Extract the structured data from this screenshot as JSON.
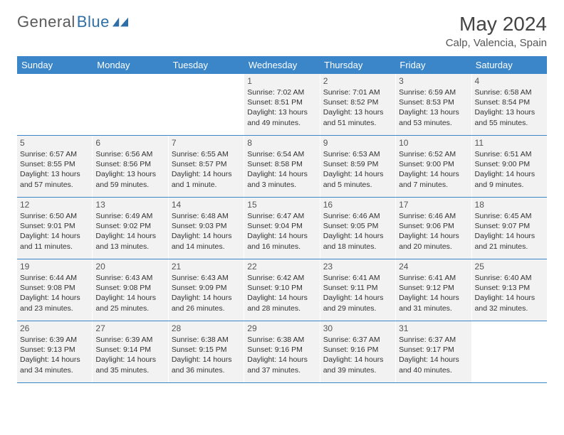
{
  "brand": {
    "part1": "General",
    "part2": "Blue"
  },
  "title": "May 2024",
  "location": "Calp, Valencia, Spain",
  "weekdays": [
    "Sunday",
    "Monday",
    "Tuesday",
    "Wednesday",
    "Thursday",
    "Friday",
    "Saturday"
  ],
  "colors": {
    "header_bar": "#3a86c8",
    "cell_bg": "#f2f2f2",
    "page_bg": "#ffffff",
    "text": "#333333",
    "brand_gray": "#5a5a5a",
    "brand_blue": "#2f6fa8"
  },
  "weeks": [
    [
      {
        "day": "",
        "sunrise": "",
        "sunset": "",
        "daylight": "",
        "empty": true
      },
      {
        "day": "",
        "sunrise": "",
        "sunset": "",
        "daylight": "",
        "empty": true
      },
      {
        "day": "",
        "sunrise": "",
        "sunset": "",
        "daylight": "",
        "empty": true
      },
      {
        "day": "1",
        "sunrise": "Sunrise: 7:02 AM",
        "sunset": "Sunset: 8:51 PM",
        "daylight": "Daylight: 13 hours and 49 minutes."
      },
      {
        "day": "2",
        "sunrise": "Sunrise: 7:01 AM",
        "sunset": "Sunset: 8:52 PM",
        "daylight": "Daylight: 13 hours and 51 minutes."
      },
      {
        "day": "3",
        "sunrise": "Sunrise: 6:59 AM",
        "sunset": "Sunset: 8:53 PM",
        "daylight": "Daylight: 13 hours and 53 minutes."
      },
      {
        "day": "4",
        "sunrise": "Sunrise: 6:58 AM",
        "sunset": "Sunset: 8:54 PM",
        "daylight": "Daylight: 13 hours and 55 minutes."
      }
    ],
    [
      {
        "day": "5",
        "sunrise": "Sunrise: 6:57 AM",
        "sunset": "Sunset: 8:55 PM",
        "daylight": "Daylight: 13 hours and 57 minutes."
      },
      {
        "day": "6",
        "sunrise": "Sunrise: 6:56 AM",
        "sunset": "Sunset: 8:56 PM",
        "daylight": "Daylight: 13 hours and 59 minutes."
      },
      {
        "day": "7",
        "sunrise": "Sunrise: 6:55 AM",
        "sunset": "Sunset: 8:57 PM",
        "daylight": "Daylight: 14 hours and 1 minute."
      },
      {
        "day": "8",
        "sunrise": "Sunrise: 6:54 AM",
        "sunset": "Sunset: 8:58 PM",
        "daylight": "Daylight: 14 hours and 3 minutes."
      },
      {
        "day": "9",
        "sunrise": "Sunrise: 6:53 AM",
        "sunset": "Sunset: 8:59 PM",
        "daylight": "Daylight: 14 hours and 5 minutes."
      },
      {
        "day": "10",
        "sunrise": "Sunrise: 6:52 AM",
        "sunset": "Sunset: 9:00 PM",
        "daylight": "Daylight: 14 hours and 7 minutes."
      },
      {
        "day": "11",
        "sunrise": "Sunrise: 6:51 AM",
        "sunset": "Sunset: 9:00 PM",
        "daylight": "Daylight: 14 hours and 9 minutes."
      }
    ],
    [
      {
        "day": "12",
        "sunrise": "Sunrise: 6:50 AM",
        "sunset": "Sunset: 9:01 PM",
        "daylight": "Daylight: 14 hours and 11 minutes."
      },
      {
        "day": "13",
        "sunrise": "Sunrise: 6:49 AM",
        "sunset": "Sunset: 9:02 PM",
        "daylight": "Daylight: 14 hours and 13 minutes."
      },
      {
        "day": "14",
        "sunrise": "Sunrise: 6:48 AM",
        "sunset": "Sunset: 9:03 PM",
        "daylight": "Daylight: 14 hours and 14 minutes."
      },
      {
        "day": "15",
        "sunrise": "Sunrise: 6:47 AM",
        "sunset": "Sunset: 9:04 PM",
        "daylight": "Daylight: 14 hours and 16 minutes."
      },
      {
        "day": "16",
        "sunrise": "Sunrise: 6:46 AM",
        "sunset": "Sunset: 9:05 PM",
        "daylight": "Daylight: 14 hours and 18 minutes."
      },
      {
        "day": "17",
        "sunrise": "Sunrise: 6:46 AM",
        "sunset": "Sunset: 9:06 PM",
        "daylight": "Daylight: 14 hours and 20 minutes."
      },
      {
        "day": "18",
        "sunrise": "Sunrise: 6:45 AM",
        "sunset": "Sunset: 9:07 PM",
        "daylight": "Daylight: 14 hours and 21 minutes."
      }
    ],
    [
      {
        "day": "19",
        "sunrise": "Sunrise: 6:44 AM",
        "sunset": "Sunset: 9:08 PM",
        "daylight": "Daylight: 14 hours and 23 minutes."
      },
      {
        "day": "20",
        "sunrise": "Sunrise: 6:43 AM",
        "sunset": "Sunset: 9:08 PM",
        "daylight": "Daylight: 14 hours and 25 minutes."
      },
      {
        "day": "21",
        "sunrise": "Sunrise: 6:43 AM",
        "sunset": "Sunset: 9:09 PM",
        "daylight": "Daylight: 14 hours and 26 minutes."
      },
      {
        "day": "22",
        "sunrise": "Sunrise: 6:42 AM",
        "sunset": "Sunset: 9:10 PM",
        "daylight": "Daylight: 14 hours and 28 minutes."
      },
      {
        "day": "23",
        "sunrise": "Sunrise: 6:41 AM",
        "sunset": "Sunset: 9:11 PM",
        "daylight": "Daylight: 14 hours and 29 minutes."
      },
      {
        "day": "24",
        "sunrise": "Sunrise: 6:41 AM",
        "sunset": "Sunset: 9:12 PM",
        "daylight": "Daylight: 14 hours and 31 minutes."
      },
      {
        "day": "25",
        "sunrise": "Sunrise: 6:40 AM",
        "sunset": "Sunset: 9:13 PM",
        "daylight": "Daylight: 14 hours and 32 minutes."
      }
    ],
    [
      {
        "day": "26",
        "sunrise": "Sunrise: 6:39 AM",
        "sunset": "Sunset: 9:13 PM",
        "daylight": "Daylight: 14 hours and 34 minutes."
      },
      {
        "day": "27",
        "sunrise": "Sunrise: 6:39 AM",
        "sunset": "Sunset: 9:14 PM",
        "daylight": "Daylight: 14 hours and 35 minutes."
      },
      {
        "day": "28",
        "sunrise": "Sunrise: 6:38 AM",
        "sunset": "Sunset: 9:15 PM",
        "daylight": "Daylight: 14 hours and 36 minutes."
      },
      {
        "day": "29",
        "sunrise": "Sunrise: 6:38 AM",
        "sunset": "Sunset: 9:16 PM",
        "daylight": "Daylight: 14 hours and 37 minutes."
      },
      {
        "day": "30",
        "sunrise": "Sunrise: 6:37 AM",
        "sunset": "Sunset: 9:16 PM",
        "daylight": "Daylight: 14 hours and 39 minutes."
      },
      {
        "day": "31",
        "sunrise": "Sunrise: 6:37 AM",
        "sunset": "Sunset: 9:17 PM",
        "daylight": "Daylight: 14 hours and 40 minutes."
      },
      {
        "day": "",
        "sunrise": "",
        "sunset": "",
        "daylight": "",
        "empty": true
      }
    ]
  ]
}
